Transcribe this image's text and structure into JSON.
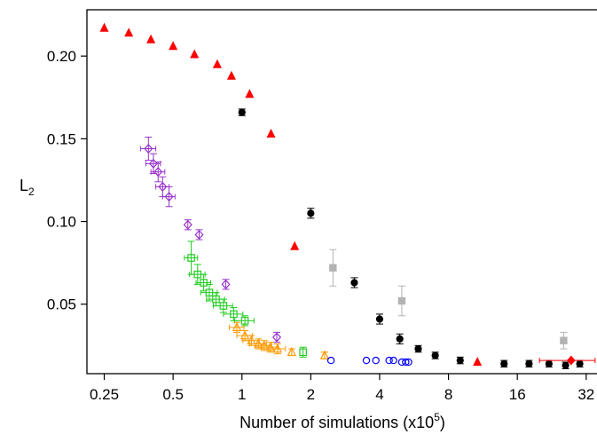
{
  "chart_data": {
    "type": "scatter",
    "title": "",
    "xlabel": "Number of simulations (x10^5)",
    "xlabel_parts": {
      "main": "Number of simulations (x10",
      "sup": "5",
      "tail": ")"
    },
    "ylabel": "L2",
    "ylabel_parts": {
      "main": "L",
      "sub": "2"
    },
    "x_scale": "log2",
    "xlim": [
      0.21,
      36
    ],
    "ylim": [
      0.008,
      0.228
    ],
    "x_ticks": [
      0.25,
      0.5,
      1,
      2,
      4,
      8,
      16,
      32
    ],
    "x_tick_labels": [
      "0.25",
      "0.5",
      "1",
      "2",
      "4",
      "8",
      "16",
      "32"
    ],
    "y_ticks": [
      0.05,
      0.1,
      0.15,
      0.2
    ],
    "y_tick_labels": [
      "0.05",
      "0.10",
      "0.15",
      "0.20"
    ],
    "grid": false,
    "series": [
      {
        "marker": "triangle-filled",
        "color": "#ff0000",
        "points": [
          {
            "x": 0.25,
            "y": 0.217
          },
          {
            "x": 0.32,
            "y": 0.214
          },
          {
            "x": 0.4,
            "y": 0.21
          },
          {
            "x": 0.5,
            "y": 0.206
          },
          {
            "x": 0.62,
            "y": 0.201
          },
          {
            "x": 0.78,
            "y": 0.195
          },
          {
            "x": 0.9,
            "y": 0.188
          },
          {
            "x": 1.08,
            "y": 0.177
          },
          {
            "x": 1.34,
            "y": 0.153
          },
          {
            "x": 1.7,
            "y": 0.085
          },
          {
            "x": 10.7,
            "y": 0.015
          }
        ]
      },
      {
        "marker": "circle-filled",
        "color": "#000000",
        "points": [
          {
            "x": 1.0,
            "y": 0.166,
            "err": 0.002
          },
          {
            "x": 2.0,
            "y": 0.105,
            "err": 0.003
          },
          {
            "x": 3.1,
            "y": 0.063,
            "err": 0.003
          },
          {
            "x": 4.0,
            "y": 0.041,
            "err": 0.003
          },
          {
            "x": 4.9,
            "y": 0.029,
            "err": 0.003
          },
          {
            "x": 5.9,
            "y": 0.023,
            "err": 0.002
          },
          {
            "x": 7.0,
            "y": 0.019,
            "err": 0.002
          },
          {
            "x": 9.0,
            "y": 0.016,
            "err": 0.002
          },
          {
            "x": 14.0,
            "y": 0.014,
            "err": 0.002
          },
          {
            "x": 18.0,
            "y": 0.014,
            "err": 0.002
          },
          {
            "x": 22.0,
            "y": 0.014,
            "err": 0.002
          },
          {
            "x": 26.0,
            "y": 0.013,
            "err": 0.002
          },
          {
            "x": 30.0,
            "y": 0.014,
            "err": 0.002
          }
        ]
      },
      {
        "marker": "square-filled",
        "color": "#b3b3b3",
        "points": [
          {
            "x": 2.5,
            "y": 0.072,
            "err": 0.011
          },
          {
            "x": 5.0,
            "y": 0.052,
            "err": 0.009
          },
          {
            "x": 25.5,
            "y": 0.028,
            "err": 0.005
          }
        ]
      },
      {
        "marker": "diamond-open",
        "color": "#9933cc",
        "points": [
          {
            "x": 0.39,
            "y": 0.144,
            "xerr": 0.03,
            "err": 0.007
          },
          {
            "x": 0.41,
            "y": 0.135,
            "xerr": 0.03,
            "err": 0.006
          },
          {
            "x": 0.43,
            "y": 0.13,
            "xerr": 0.03,
            "err": 0.006
          },
          {
            "x": 0.45,
            "y": 0.121,
            "xerr": 0.03,
            "err": 0.006
          },
          {
            "x": 0.48,
            "y": 0.115,
            "xerr": 0.03,
            "err": 0.006
          },
          {
            "x": 0.58,
            "y": 0.098,
            "err": 0.003
          },
          {
            "x": 0.65,
            "y": 0.092,
            "err": 0.003
          },
          {
            "x": 0.85,
            "y": 0.062,
            "err": 0.003
          },
          {
            "x": 1.42,
            "y": 0.03,
            "err": 0.003
          }
        ]
      },
      {
        "marker": "square-open",
        "color": "#22cc22",
        "points": [
          {
            "x": 0.6,
            "y": 0.078,
            "xerr": 0.04,
            "err": 0.01
          },
          {
            "x": 0.64,
            "y": 0.068,
            "xerr": 0.05,
            "err": 0.006
          },
          {
            "x": 0.68,
            "y": 0.063,
            "xerr": 0.05,
            "err": 0.005
          },
          {
            "x": 0.72,
            "y": 0.057,
            "xerr": 0.06,
            "err": 0.005
          },
          {
            "x": 0.77,
            "y": 0.053,
            "xerr": 0.07,
            "err": 0.004
          },
          {
            "x": 0.83,
            "y": 0.049,
            "xerr": 0.08,
            "err": 0.004
          },
          {
            "x": 0.92,
            "y": 0.044,
            "xerr": 0.09,
            "err": 0.004
          },
          {
            "x": 1.03,
            "y": 0.04,
            "xerr": 0.1,
            "err": 0.003
          },
          {
            "x": 1.85,
            "y": 0.021,
            "err": 0.003
          }
        ]
      },
      {
        "marker": "triangle-open",
        "color": "#ff9900",
        "points": [
          {
            "x": 0.95,
            "y": 0.036,
            "xerr": 0.07,
            "err": 0.003
          },
          {
            "x": 1.03,
            "y": 0.031,
            "xerr": 0.08,
            "err": 0.003
          },
          {
            "x": 1.1,
            "y": 0.028,
            "xerr": 0.09,
            "err": 0.003
          },
          {
            "x": 1.18,
            "y": 0.026,
            "xerr": 0.1,
            "err": 0.003
          },
          {
            "x": 1.25,
            "y": 0.025,
            "xerr": 0.1,
            "err": 0.003
          },
          {
            "x": 1.33,
            "y": 0.024,
            "xerr": 0.11,
            "err": 0.003
          },
          {
            "x": 1.43,
            "y": 0.023,
            "xerr": 0.12,
            "err": 0.003
          },
          {
            "x": 1.65,
            "y": 0.021,
            "err": 0.002
          },
          {
            "x": 2.3,
            "y": 0.019,
            "err": 0.002
          }
        ]
      },
      {
        "marker": "circle-open",
        "color": "#0000ff",
        "points": [
          {
            "x": 2.45,
            "y": 0.016
          },
          {
            "x": 3.5,
            "y": 0.016
          },
          {
            "x": 3.85,
            "y": 0.016
          },
          {
            "x": 4.4,
            "y": 0.016
          },
          {
            "x": 4.6,
            "y": 0.016
          },
          {
            "x": 5.0,
            "y": 0.015
          },
          {
            "x": 5.2,
            "y": 0.015
          },
          {
            "x": 5.35,
            "y": 0.015
          }
        ]
      },
      {
        "marker": "diamond-filled",
        "color": "#ff0000",
        "points": [
          {
            "x": 27.5,
            "y": 0.016,
            "xerr": 7.5
          }
        ]
      }
    ]
  }
}
